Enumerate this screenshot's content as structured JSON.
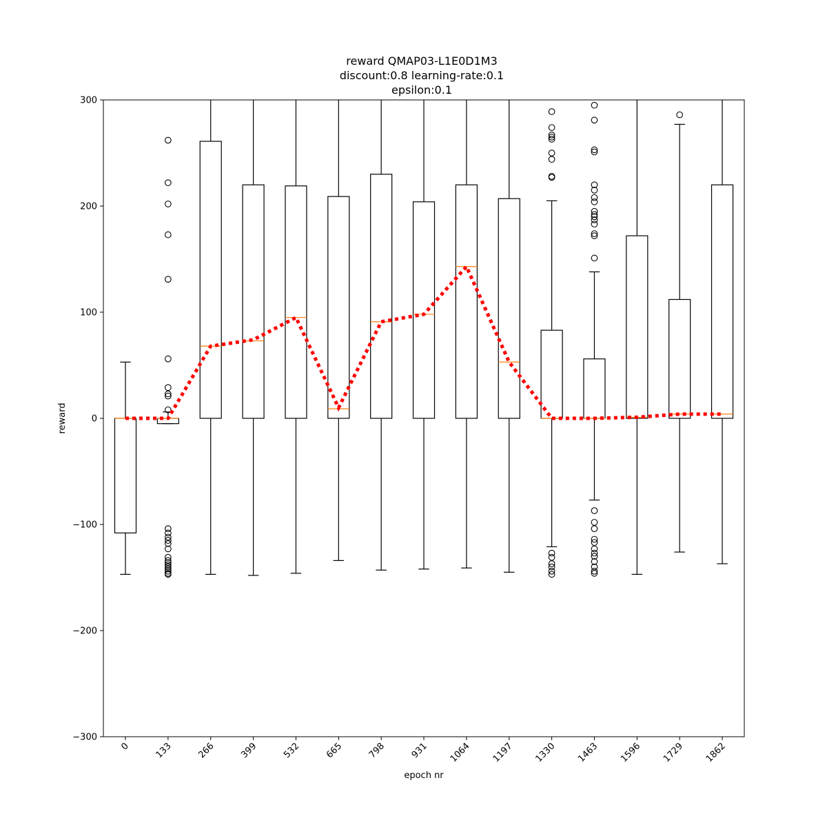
{
  "chart_data": {
    "type": "box",
    "title": [
      "reward QMAP03-L1E0D1M3",
      "discount:0.8 learning-rate:0.1",
      "epsilon:0.1"
    ],
    "xlabel": "epoch nr",
    "ylabel": "reward",
    "ylim": [
      -300,
      300
    ],
    "yticks": [
      -300,
      -200,
      -100,
      0,
      100,
      200,
      300
    ],
    "grid": false,
    "categories": [
      "0",
      "133",
      "266",
      "399",
      "532",
      "665",
      "798",
      "931",
      "1064",
      "1197",
      "1330",
      "1463",
      "1596",
      "1729",
      "1862"
    ],
    "boxes": [
      {
        "q1": -108,
        "median": 0,
        "q3": 0,
        "whisker_low": -147,
        "whisker_high": 53,
        "fliers": []
      },
      {
        "q1": -5,
        "median": 0,
        "q3": 0,
        "whisker_low": -5,
        "whisker_high": 6,
        "fliers": [
          262,
          222,
          202,
          173,
          131,
          56,
          29,
          23,
          21,
          8,
          -104,
          -108,
          -112,
          -115,
          -118,
          -123,
          -131,
          -134,
          -136,
          -138,
          -140,
          -142,
          -144,
          -146,
          -147
        ]
      },
      {
        "q1": 0,
        "median": 68,
        "q3": 261,
        "whisker_low": -147,
        "whisker_high": 300,
        "fliers": []
      },
      {
        "q1": 0,
        "median": 73,
        "q3": 220,
        "whisker_low": -148,
        "whisker_high": 300,
        "fliers": []
      },
      {
        "q1": 0,
        "median": 95,
        "q3": 219,
        "whisker_low": -146,
        "whisker_high": 300,
        "fliers": []
      },
      {
        "q1": 0,
        "median": 9,
        "q3": 209,
        "whisker_low": -134,
        "whisker_high": 300,
        "fliers": []
      },
      {
        "q1": 0,
        "median": 91,
        "q3": 230,
        "whisker_low": -143,
        "whisker_high": 300,
        "fliers": []
      },
      {
        "q1": 0,
        "median": 98,
        "q3": 204,
        "whisker_low": -142,
        "whisker_high": 300,
        "fliers": []
      },
      {
        "q1": 0,
        "median": 143,
        "q3": 220,
        "whisker_low": -141,
        "whisker_high": 300,
        "fliers": []
      },
      {
        "q1": 0,
        "median": 53,
        "q3": 207,
        "whisker_low": -145,
        "whisker_high": 300,
        "fliers": []
      },
      {
        "q1": 0,
        "median": 0,
        "q3": 83,
        "whisker_low": -121,
        "whisker_high": 205,
        "fliers": [
          289,
          274,
          267,
          265,
          263,
          250,
          244,
          228,
          227,
          -127,
          -131,
          -137,
          -140,
          -144,
          -147
        ]
      },
      {
        "q1": 0,
        "median": 0,
        "q3": 56,
        "whisker_low": -77,
        "whisker_high": 138,
        "fliers": [
          295,
          281,
          253,
          251,
          220,
          215,
          208,
          204,
          195,
          192,
          190,
          187,
          183,
          174,
          172,
          151,
          -87,
          -98,
          -104,
          -114,
          -117,
          -123,
          -127,
          -130,
          -135,
          -140,
          -144,
          -146
        ]
      },
      {
        "q1": 0,
        "median": 1,
        "q3": 172,
        "whisker_low": -147,
        "whisker_high": 300,
        "fliers": []
      },
      {
        "q1": 0,
        "median": 4,
        "q3": 112,
        "whisker_low": -126,
        "whisker_high": 277,
        "fliers": [
          286
        ]
      },
      {
        "q1": 0,
        "median": 4,
        "q3": 220,
        "whisker_low": -137,
        "whisker_high": 300,
        "fliers": []
      }
    ],
    "mean_line": {
      "values": [
        0,
        0,
        68,
        74,
        95,
        10,
        91,
        98,
        143,
        53,
        0,
        0,
        1,
        4,
        4
      ],
      "color": "#ff0000",
      "style": "dotted"
    },
    "colors": {
      "box": "#000000",
      "median": "#ff7f0e",
      "mean_line": "#ff0000"
    }
  }
}
